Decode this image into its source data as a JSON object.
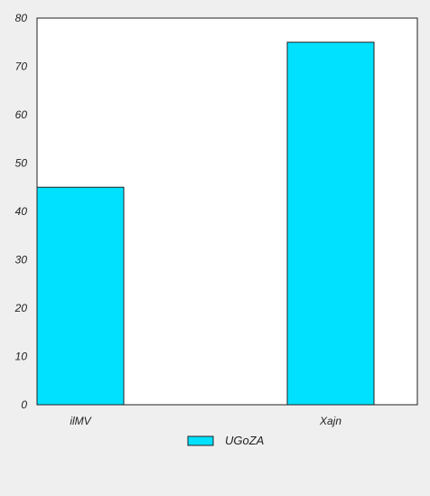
{
  "chart_data": {
    "type": "bar",
    "categories": [
      "ilMV",
      "Xajn"
    ],
    "series": [
      {
        "name": "UGoZA",
        "values": [
          45,
          75
        ],
        "color": "#00e0ff"
      }
    ],
    "ylim": [
      0,
      80
    ],
    "yticks": [
      0,
      10,
      20,
      30,
      40,
      50,
      60,
      70,
      80
    ],
    "grid": false,
    "legend_position": "bottom-center",
    "plot_background": "#ffffff",
    "page_background": "#efefef"
  }
}
